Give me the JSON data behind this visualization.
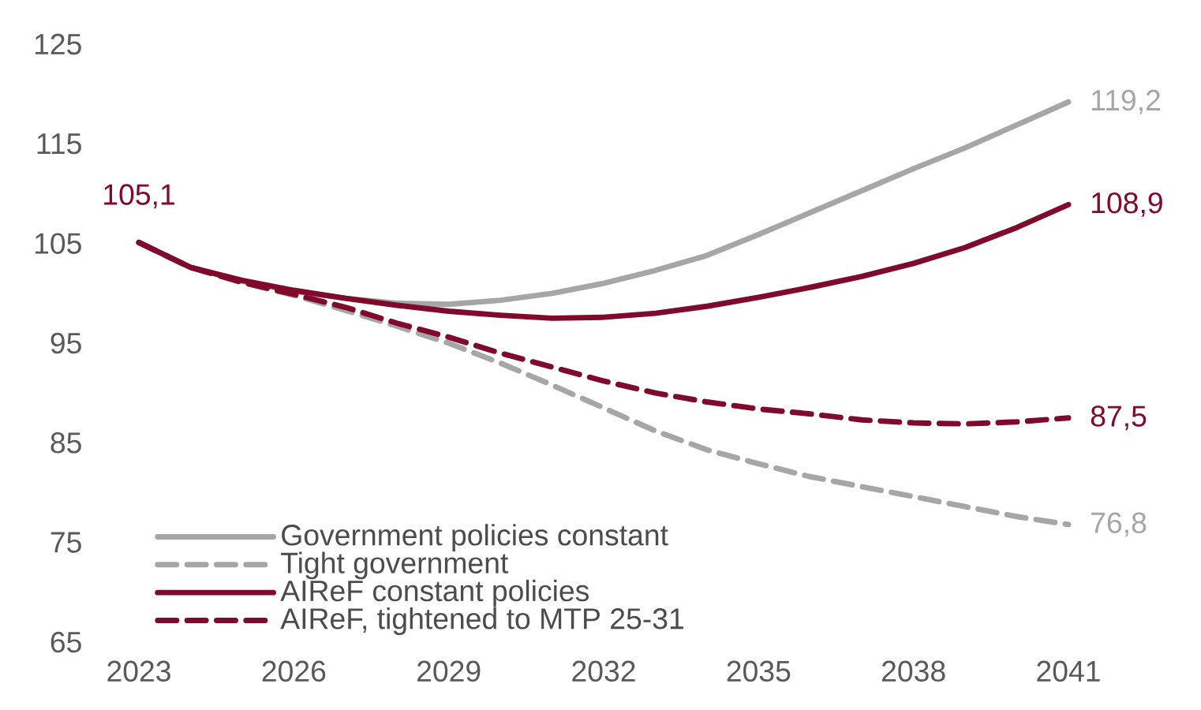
{
  "chart_data": {
    "type": "line",
    "x": [
      2023,
      2024,
      2025,
      2026,
      2027,
      2028,
      2029,
      2030,
      2031,
      2032,
      2033,
      2034,
      2035,
      2036,
      2037,
      2038,
      2039,
      2040,
      2041
    ],
    "series": [
      {
        "name": "Government policies constant",
        "color": "#a6a6a6",
        "line_style": "solid",
        "values": [
          105.1,
          102.6,
          101.2,
          100.2,
          99.5,
          99.0,
          98.9,
          99.3,
          100.0,
          101.0,
          102.3,
          103.8,
          105.9,
          108.1,
          110.3,
          112.5,
          114.6,
          116.9,
          119.2
        ],
        "value_labels": [
          null,
          null,
          null,
          null,
          null,
          null,
          null,
          null,
          null,
          null,
          null,
          null,
          null,
          null,
          null,
          null,
          null,
          null,
          "119,2"
        ]
      },
      {
        "name": "Tight government",
        "color": "#a6a6a6",
        "line_style": "dashed",
        "values": [
          105.1,
          102.6,
          101.1,
          99.8,
          98.3,
          96.7,
          95.0,
          93.0,
          90.8,
          88.5,
          86.2,
          84.3,
          82.9,
          81.6,
          80.6,
          79.6,
          78.6,
          77.6,
          76.8
        ],
        "value_labels": [
          null,
          null,
          null,
          null,
          null,
          null,
          null,
          null,
          null,
          null,
          null,
          null,
          null,
          null,
          null,
          null,
          null,
          null,
          "76,8"
        ]
      },
      {
        "name": "AIReF constant policies",
        "color": "#7f0a2b",
        "line_style": "solid",
        "values": [
          105.1,
          102.6,
          101.3,
          100.3,
          99.5,
          98.8,
          98.2,
          97.8,
          97.5,
          97.6,
          98.0,
          98.7,
          99.6,
          100.6,
          101.7,
          103.0,
          104.6,
          106.6,
          108.9
        ],
        "value_labels": [
          "105,1",
          null,
          null,
          null,
          null,
          null,
          null,
          null,
          null,
          null,
          null,
          null,
          null,
          null,
          null,
          null,
          null,
          null,
          "108,9"
        ]
      },
      {
        "name": "AIReF, tightened to MTP 25-31",
        "color": "#7f0a2b",
        "line_style": "dashed",
        "values": [
          105.1,
          102.6,
          101.1,
          99.9,
          98.6,
          97.0,
          95.6,
          94.0,
          92.6,
          91.2,
          90.0,
          89.1,
          88.4,
          87.9,
          87.3,
          87.0,
          86.9,
          87.1,
          87.5
        ],
        "value_labels": [
          null,
          null,
          null,
          null,
          null,
          null,
          null,
          null,
          null,
          null,
          null,
          null,
          null,
          null,
          null,
          null,
          null,
          null,
          "87,5"
        ]
      }
    ],
    "xlim": [
      2023,
      2041
    ],
    "ylim": [
      65,
      125
    ],
    "xticks": [
      2023,
      2026,
      2029,
      2032,
      2035,
      2038,
      2041
    ],
    "yticks": [
      65,
      75,
      85,
      95,
      105,
      115,
      125
    ],
    "legend": "bottom left"
  }
}
